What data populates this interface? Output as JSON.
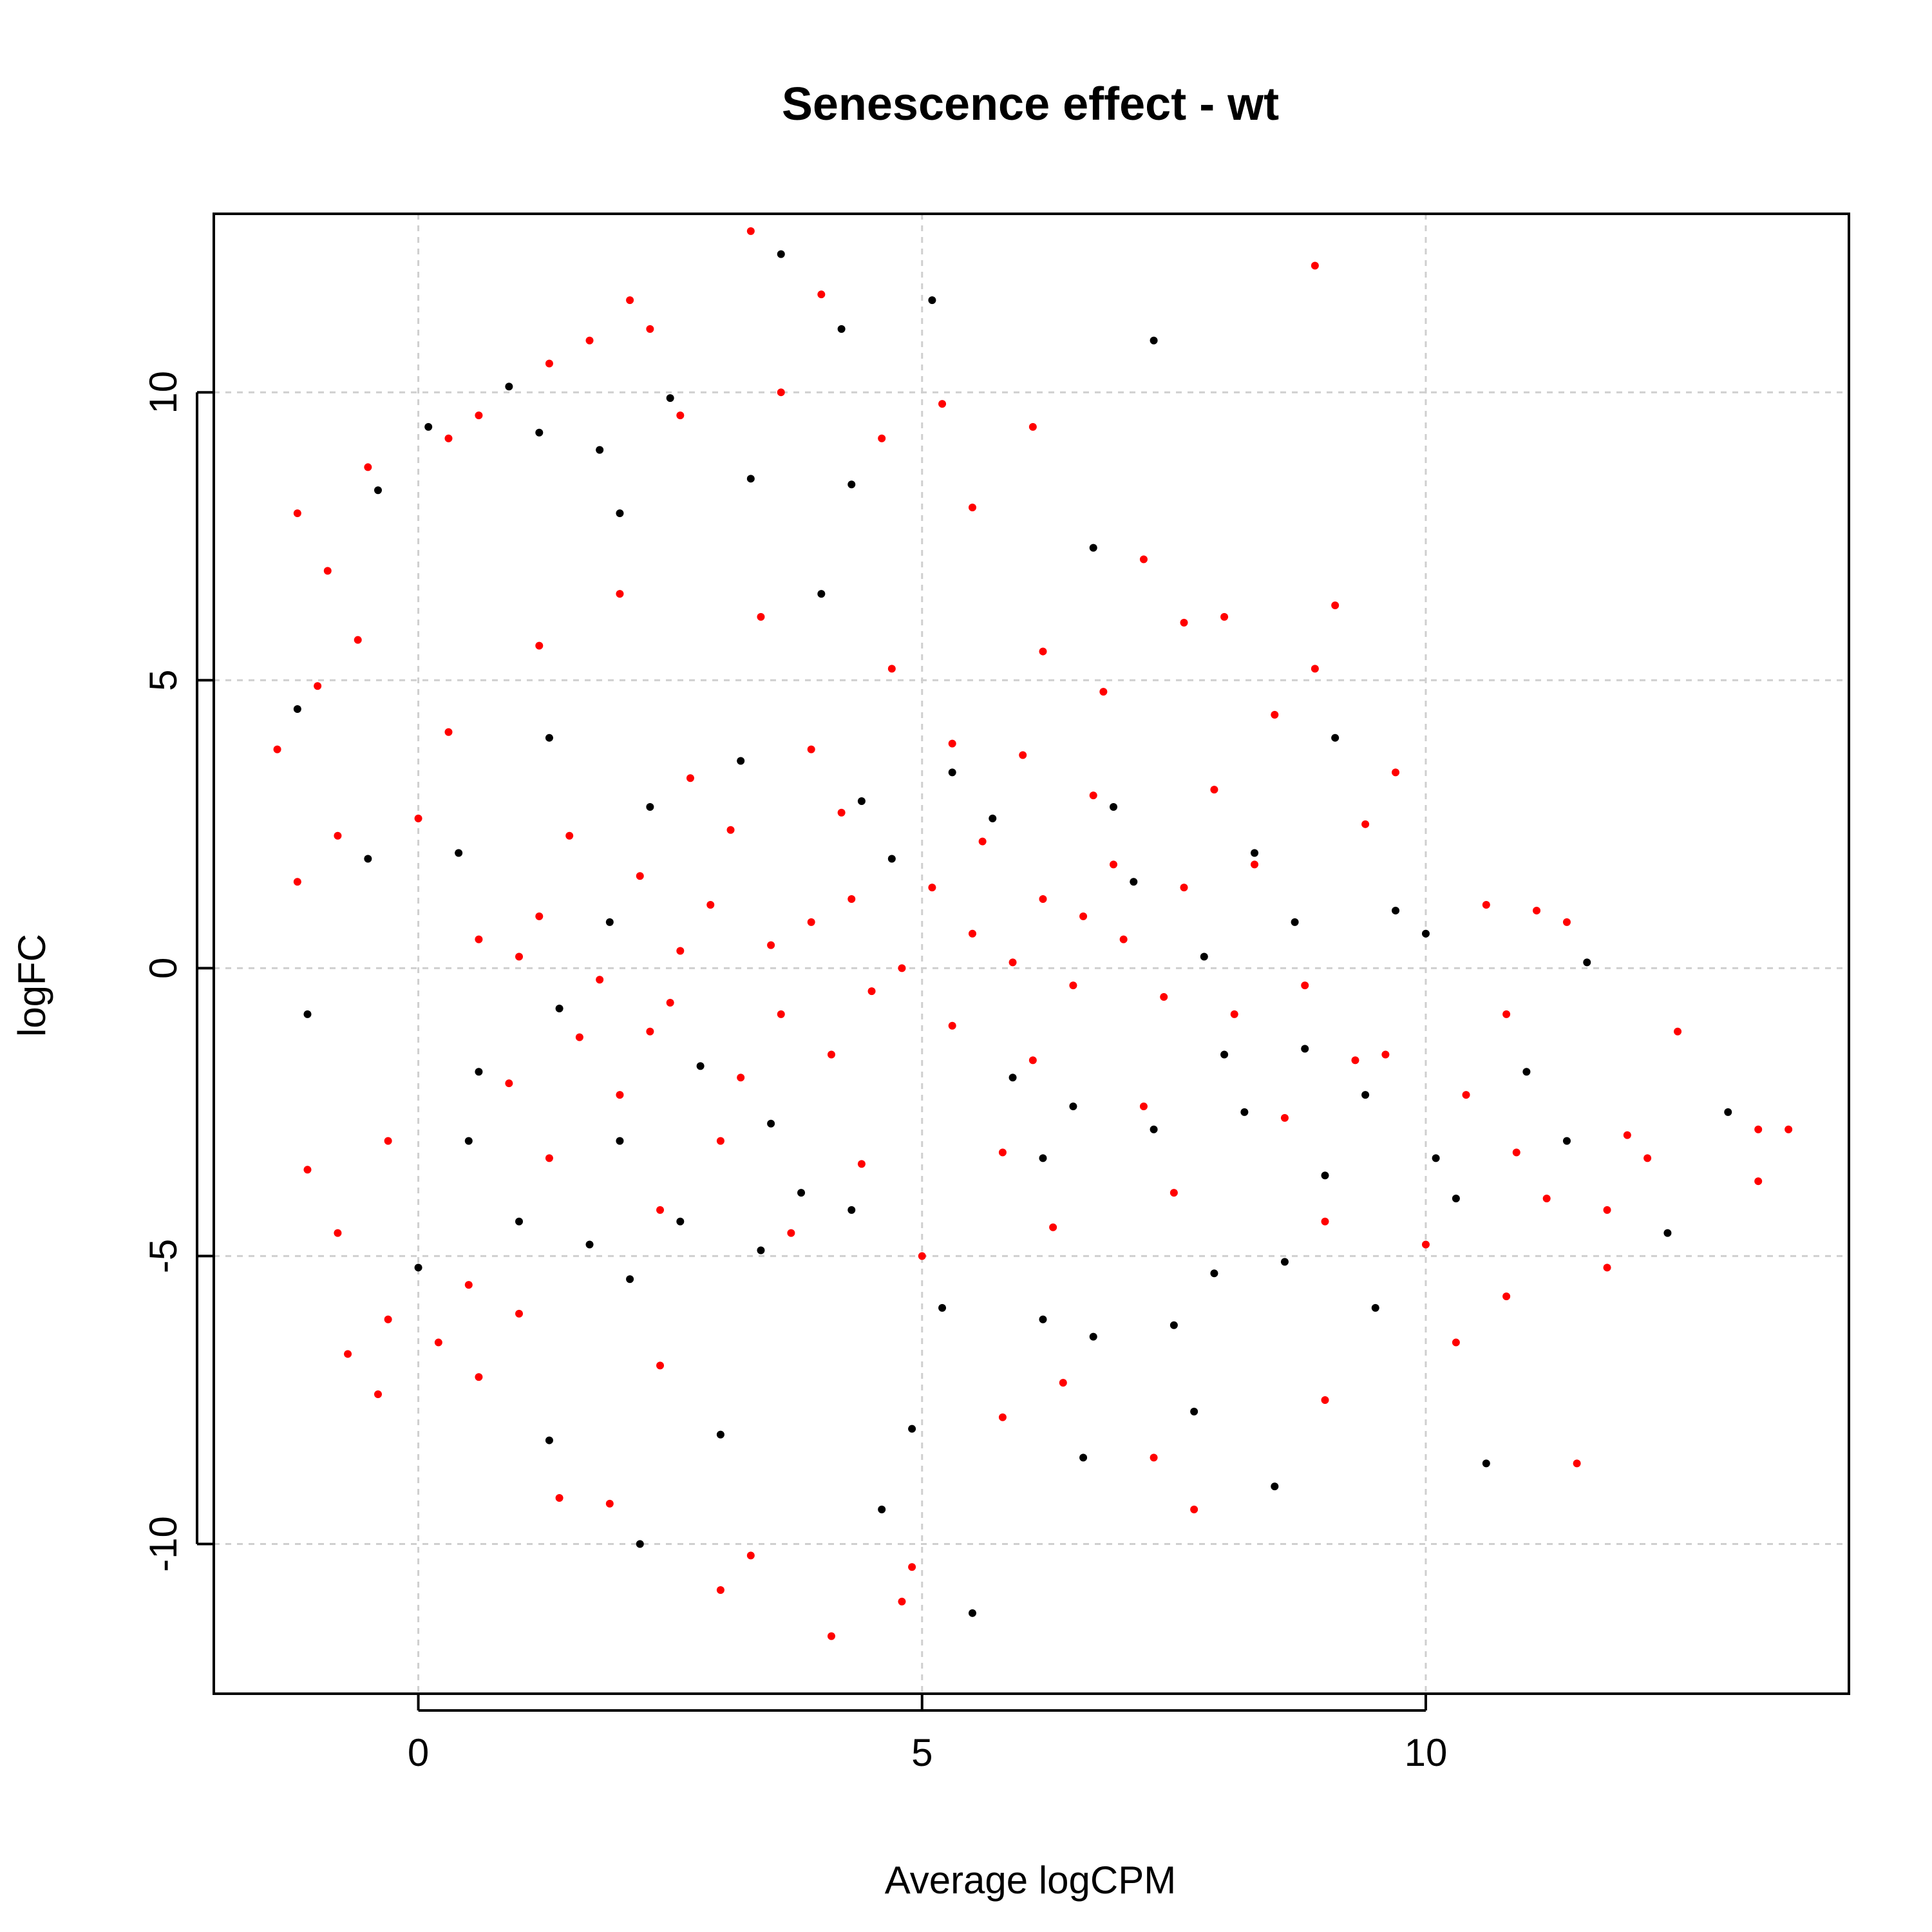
{
  "chart_data": {
    "type": "scatter",
    "title": "Senescence effect - wt",
    "xlabel": "Average logCPM",
    "ylabel": "logFC",
    "xlim": [
      -2.03,
      14.2
    ],
    "ylim": [
      -12.6,
      13.1
    ],
    "xticks": [
      0,
      5,
      10
    ],
    "yticks": [
      -10,
      -5,
      0,
      5,
      10
    ],
    "x_tick_labels": [
      "0",
      "5",
      "10"
    ],
    "y_tick_labels": [
      "-10",
      "-5",
      "0",
      "5",
      "10"
    ],
    "grid": true,
    "legend": "none",
    "colors": {
      "not_significant": "#000000",
      "significant": "#ff0000"
    },
    "series": [
      {
        "color": "#000000",
        "points": [
          [
            3.6,
            12.4
          ],
          [
            5.1,
            11.6
          ],
          [
            4.2,
            11.1
          ],
          [
            7.3,
            10.9
          ],
          [
            2.5,
            9.9
          ],
          [
            1.2,
            9.3
          ],
          [
            1.8,
            9.0
          ],
          [
            3.3,
            8.5
          ],
          [
            4.3,
            8.4
          ],
          [
            0.9,
            10.1
          ],
          [
            0.1,
            9.4
          ],
          [
            -0.4,
            8.3
          ],
          [
            2.0,
            7.9
          ],
          [
            4.0,
            6.5
          ],
          [
            6.7,
            7.3
          ],
          [
            9.1,
            4.0
          ],
          [
            10.0,
            0.6
          ],
          [
            11.6,
            0.1
          ],
          [
            -1.2,
            4.5
          ],
          [
            -1.1,
            -0.8
          ],
          [
            -0.5,
            1.9
          ],
          [
            0.5,
            -3.0
          ],
          [
            1.0,
            -4.4
          ],
          [
            1.7,
            -4.8
          ],
          [
            2.1,
            -5.4
          ],
          [
            2.6,
            -4.4
          ],
          [
            3.4,
            -4.9
          ],
          [
            4.3,
            -4.2
          ],
          [
            5.2,
            -5.9
          ],
          [
            6.2,
            -6.1
          ],
          [
            6.7,
            -6.4
          ],
          [
            7.5,
            -6.2
          ],
          [
            7.9,
            -5.3
          ],
          [
            8.6,
            -5.1
          ],
          [
            9.5,
            -5.9
          ],
          [
            10.3,
            -4.0
          ],
          [
            11.4,
            -3.0
          ],
          [
            12.4,
            -4.6
          ],
          [
            13.0,
            -2.5
          ],
          [
            10.6,
            -8.6
          ],
          [
            7.7,
            -7.7
          ],
          [
            8.5,
            -9.0
          ],
          [
            5.5,
            -11.2
          ],
          [
            2.2,
            -10.0
          ],
          [
            4.6,
            -9.4
          ],
          [
            1.3,
            -8.2
          ],
          [
            3.0,
            -8.1
          ],
          [
            4.9,
            -8.0
          ],
          [
            6.6,
            -8.5
          ],
          [
            0.0,
            -5.2
          ],
          [
            8.2,
            -2.5
          ],
          [
            9.0,
            -3.6
          ],
          [
            7.3,
            -2.8
          ],
          [
            6.2,
            -3.3
          ],
          [
            3.8,
            -3.9
          ],
          [
            2.3,
            2.8
          ],
          [
            3.2,
            3.6
          ],
          [
            5.3,
            3.4
          ],
          [
            5.7,
            2.6
          ],
          [
            6.9,
            2.8
          ],
          [
            8.3,
            2.0
          ],
          [
            8.8,
            -1.4
          ],
          [
            9.7,
            1.0
          ],
          [
            1.4,
            -0.7
          ],
          [
            1.9,
            0.8
          ],
          [
            2.8,
            -1.7
          ],
          [
            4.7,
            1.9
          ],
          [
            5.9,
            -1.9
          ],
          [
            7.8,
            0.2
          ],
          [
            8.7,
            0.8
          ],
          [
            0.4,
            2.0
          ],
          [
            0.6,
            -1.8
          ],
          [
            1.3,
            4.0
          ],
          [
            2.0,
            -3.0
          ],
          [
            3.5,
            -2.7
          ],
          [
            4.4,
            2.9
          ],
          [
            6.5,
            -2.4
          ],
          [
            7.1,
            1.5
          ],
          [
            8.0,
            -1.5
          ],
          [
            9.4,
            -2.2
          ],
          [
            10.1,
            -3.3
          ],
          [
            11.0,
            -1.8
          ]
        ]
      },
      {
        "color": "#ff0000",
        "points": [
          [
            3.3,
            12.8
          ],
          [
            8.9,
            12.2
          ],
          [
            4.0,
            11.7
          ],
          [
            2.1,
            11.6
          ],
          [
            2.3,
            11.1
          ],
          [
            1.3,
            10.5
          ],
          [
            1.7,
            10.9
          ],
          [
            0.6,
            9.6
          ],
          [
            0.3,
            9.2
          ],
          [
            -0.5,
            8.7
          ],
          [
            2.6,
            9.6
          ],
          [
            3.6,
            10.0
          ],
          [
            5.2,
            9.8
          ],
          [
            6.1,
            9.4
          ],
          [
            4.6,
            9.2
          ],
          [
            7.2,
            7.1
          ],
          [
            5.5,
            8.0
          ],
          [
            -1.2,
            7.9
          ],
          [
            -0.9,
            6.9
          ],
          [
            -0.6,
            5.7
          ],
          [
            -1.4,
            3.8
          ],
          [
            -1.0,
            4.9
          ],
          [
            8.9,
            5.2
          ],
          [
            9.1,
            6.3
          ],
          [
            9.7,
            3.4
          ],
          [
            7.6,
            6.0
          ],
          [
            8.0,
            6.1
          ],
          [
            6.2,
            5.5
          ],
          [
            10.6,
            1.1
          ],
          [
            11.1,
            1.0
          ],
          [
            11.4,
            0.8
          ],
          [
            12.5,
            -1.1
          ],
          [
            13.6,
            -2.8
          ],
          [
            13.3,
            -2.8
          ],
          [
            13.3,
            -3.7
          ],
          [
            12.2,
            -3.3
          ],
          [
            11.8,
            -5.2
          ],
          [
            11.5,
            -8.6
          ],
          [
            10.8,
            -5.7
          ],
          [
            10.3,
            -6.5
          ],
          [
            9.0,
            -7.5
          ],
          [
            7.7,
            -9.4
          ],
          [
            6.4,
            -7.2
          ],
          [
            4.1,
            -11.6
          ],
          [
            3.0,
            -10.8
          ],
          [
            3.3,
            -10.2
          ],
          [
            1.9,
            -9.3
          ],
          [
            1.4,
            -9.2
          ],
          [
            0.2,
            -6.5
          ],
          [
            -0.7,
            -6.7
          ],
          [
            -0.3,
            -6.1
          ],
          [
            -0.4,
            -7.4
          ],
          [
            -0.8,
            -4.6
          ],
          [
            -1.1,
            -3.5
          ],
          [
            -1.2,
            1.5
          ],
          [
            -0.8,
            2.3
          ],
          [
            -0.3,
            -3.0
          ],
          [
            0.5,
            -5.5
          ],
          [
            0.6,
            -7.1
          ],
          [
            1.0,
            -6.0
          ],
          [
            2.4,
            -6.9
          ],
          [
            4.8,
            -11.0
          ],
          [
            4.9,
            -10.4
          ],
          [
            5.8,
            -7.8
          ],
          [
            7.3,
            -8.5
          ],
          [
            9.0,
            -4.4
          ],
          [
            10.0,
            -4.8
          ],
          [
            11.2,
            -4.0
          ],
          [
            10.8,
            -0.8
          ],
          [
            9.3,
            -1.6
          ],
          [
            9.4,
            2.5
          ],
          [
            8.5,
            4.4
          ],
          [
            6.8,
            4.8
          ],
          [
            6.0,
            3.7
          ],
          [
            4.7,
            5.2
          ],
          [
            3.4,
            6.1
          ],
          [
            2.0,
            6.5
          ],
          [
            1.2,
            5.6
          ],
          [
            0.3,
            4.1
          ],
          [
            0.0,
            2.6
          ],
          [
            0.6,
            0.5
          ],
          [
            1.5,
            2.3
          ],
          [
            2.7,
            3.3
          ],
          [
            3.9,
            3.8
          ],
          [
            5.3,
            3.9
          ],
          [
            6.7,
            3.0
          ],
          [
            7.9,
            3.1
          ],
          [
            8.3,
            1.8
          ],
          [
            8.6,
            -2.6
          ],
          [
            7.5,
            -3.9
          ],
          [
            6.3,
            -4.5
          ],
          [
            5.0,
            -5.0
          ],
          [
            3.7,
            -4.6
          ],
          [
            2.4,
            -4.2
          ],
          [
            1.3,
            -3.3
          ],
          [
            0.9,
            -2.0
          ],
          [
            1.6,
            -1.2
          ],
          [
            2.2,
            1.6
          ],
          [
            3.1,
            2.4
          ],
          [
            4.2,
            2.7
          ],
          [
            5.6,
            2.2
          ],
          [
            6.9,
            1.8
          ],
          [
            7.6,
            1.4
          ],
          [
            8.1,
            -0.8
          ],
          [
            7.2,
            -2.4
          ],
          [
            5.8,
            -3.2
          ],
          [
            4.4,
            -3.4
          ],
          [
            3.0,
            -3.0
          ],
          [
            2.0,
            -2.2
          ],
          [
            1.2,
            0.9
          ],
          [
            2.5,
            -0.6
          ],
          [
            3.5,
            0.4
          ],
          [
            4.5,
            -0.4
          ],
          [
            5.5,
            0.6
          ],
          [
            6.5,
            -0.3
          ],
          [
            7.0,
            0.5
          ],
          [
            2.9,
            1.1
          ],
          [
            4.1,
            -1.5
          ],
          [
            5.1,
            1.4
          ],
          [
            6.1,
            -1.6
          ],
          [
            3.2,
            -1.9
          ],
          [
            4.8,
            0.0
          ],
          [
            3.9,
            0.8
          ],
          [
            2.6,
            0.3
          ],
          [
            5.9,
            0.1
          ],
          [
            6.6,
            0.9
          ],
          [
            1.8,
            -0.2
          ],
          [
            1.0,
            0.2
          ],
          [
            7.4,
            -0.5
          ],
          [
            4.3,
            1.2
          ],
          [
            5.3,
            -1.0
          ],
          [
            3.6,
            -0.8
          ],
          [
            2.3,
            -1.1
          ],
          [
            6.2,
            1.2
          ],
          [
            8.8,
            -0.3
          ],
          [
            9.6,
            -1.5
          ],
          [
            10.4,
            -2.2
          ],
          [
            11.8,
            -4.2
          ],
          [
            12.0,
            -2.9
          ],
          [
            10.9,
            -3.2
          ]
        ]
      }
    ]
  }
}
